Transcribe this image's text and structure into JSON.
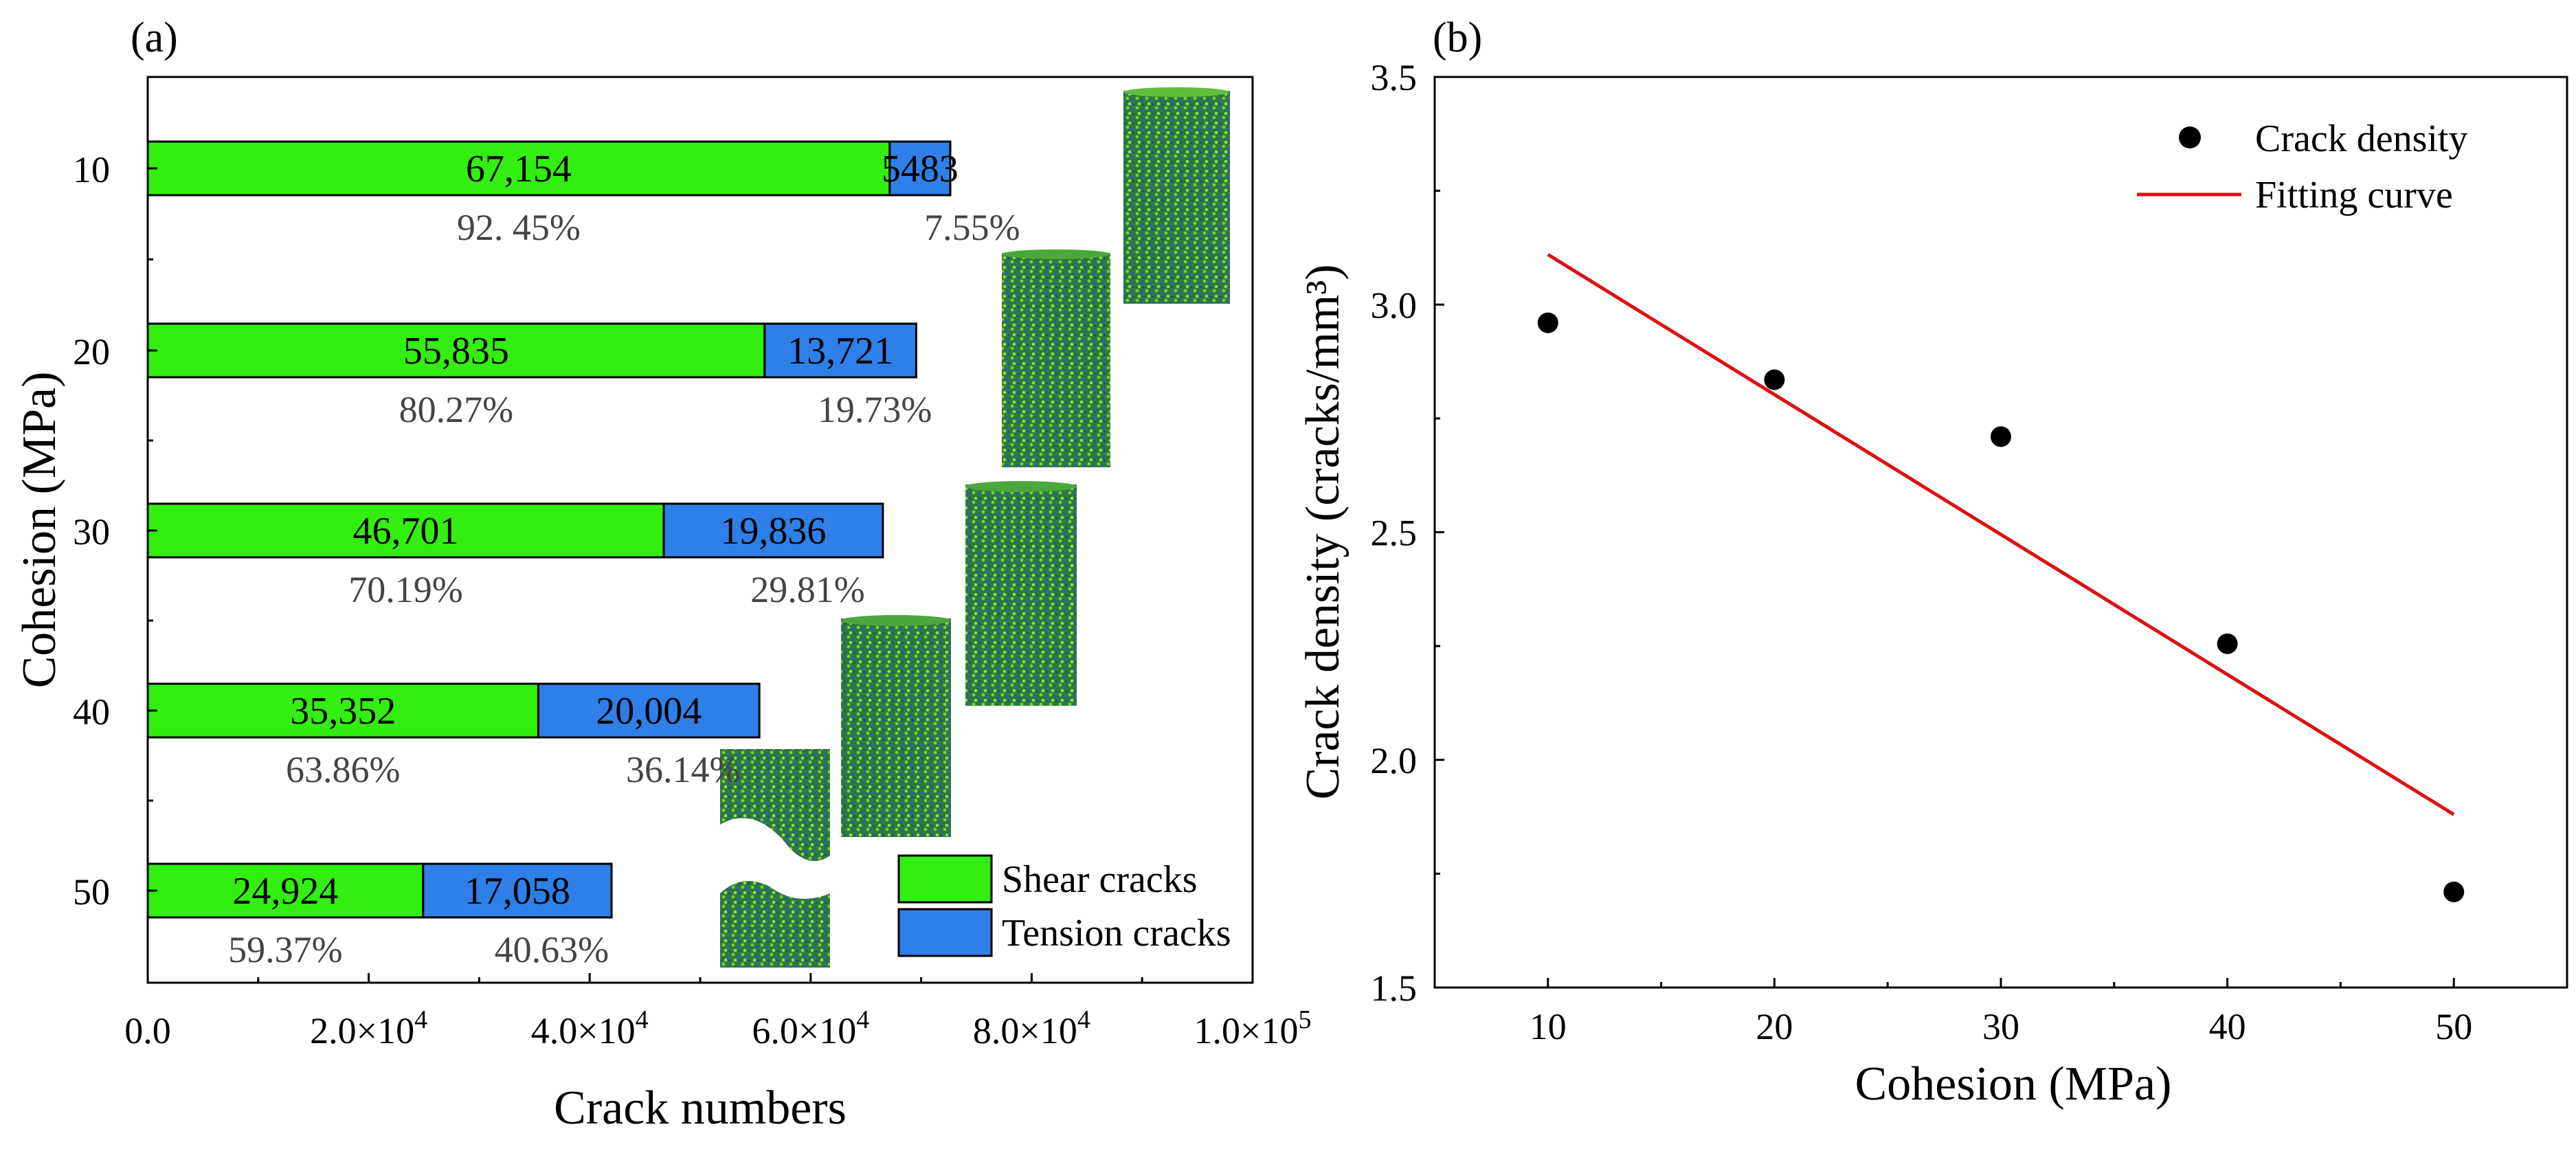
{
  "chart_data": [
    {
      "type": "bar",
      "orientation": "horizontal",
      "stacked": true,
      "panel_label": "(a)",
      "categories": [
        "10",
        "20",
        "30",
        "40",
        "50"
      ],
      "series": [
        {
          "name": "Shear cracks",
          "color": "#33ee11",
          "values": [
            67154,
            55835,
            46701,
            35352,
            24924
          ],
          "value_labels": [
            "67,154",
            "55,835",
            "46,701",
            "35,352",
            "24,924"
          ],
          "percent_labels": [
            "92. 45%",
            "80.27%",
            "70.19%",
            "63.86%",
            "59.37%"
          ]
        },
        {
          "name": "Tension cracks",
          "color": "#2f7fe8",
          "values": [
            5483,
            13721,
            19836,
            20004,
            17058
          ],
          "value_labels": [
            "5483",
            "13,721",
            "19,836",
            "20,004",
            "17,058"
          ],
          "percent_labels": [
            "7.55%",
            "19.73%",
            "29.81%",
            "36.14%",
            "40.63%"
          ]
        }
      ],
      "xlabel": "Crack numbers",
      "ylabel": "Cohesion (MPa)",
      "xlim": [
        0,
        100000
      ],
      "xticks": [
        0,
        20000,
        40000,
        60000,
        80000,
        100000
      ],
      "xtick_labels": [
        "0.0",
        "2.0×10",
        "4.0×10",
        "6.0×10",
        "8.0×10",
        "1.0×10"
      ],
      "xtick_exponents": [
        "",
        "4",
        "4",
        "4",
        "4",
        "5"
      ],
      "legend_position": "bottom-right",
      "sample_images": "cylinder specimens with crack distribution"
    },
    {
      "type": "scatter",
      "panel_label": "(b)",
      "x": [
        10,
        20,
        30,
        40,
        50
      ],
      "y": [
        2.96,
        2.835,
        2.71,
        2.255,
        1.71
      ],
      "fit_line": {
        "x": [
          10,
          50
        ],
        "y": [
          3.11,
          1.88
        ]
      },
      "series_names": {
        "points": "Crack density",
        "fit": "Fitting curve"
      },
      "xlabel": "Cohesion (MPa)",
      "ylabel": "Crack density (cracks/mm³)",
      "xlim": [
        5,
        55
      ],
      "ylim": [
        1.5,
        3.5
      ],
      "xticks": [
        10,
        20,
        30,
        40,
        50
      ],
      "xtick_labels": [
        "10",
        "20",
        "30",
        "40",
        "50"
      ],
      "yticks": [
        1.5,
        2.0,
        2.5,
        3.0,
        3.5
      ],
      "ytick_labels": [
        "1.5",
        "2.0",
        "2.5",
        "3.0",
        "3.5"
      ],
      "point_color": "#000000",
      "line_color": "#dd1111",
      "legend_position": "top-right"
    }
  ]
}
